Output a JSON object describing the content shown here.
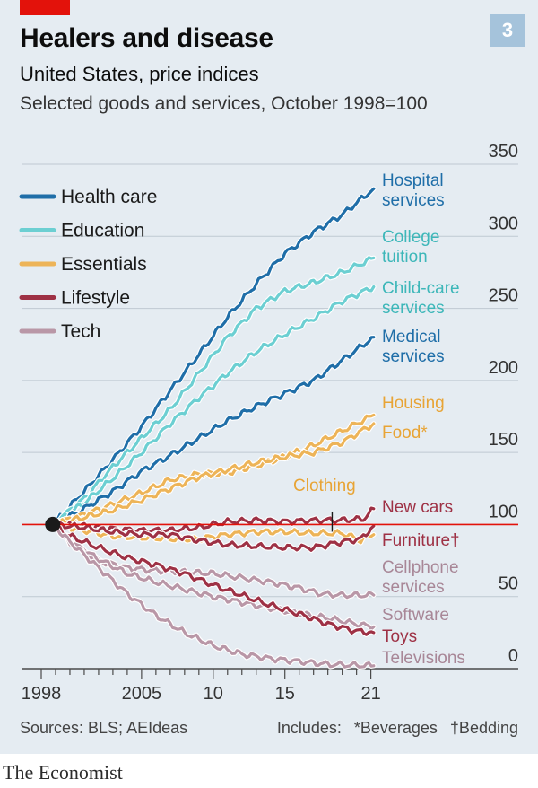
{
  "header": {
    "title": "Healers and disease",
    "subtitle": "United States, price indices",
    "description": "Selected goods and services, October 1998=100",
    "badge": "3"
  },
  "footer": {
    "source": "Sources: BLS; AEIdeas",
    "notes_prefix": "Includes:",
    "note_food": "*Beverages",
    "note_furniture": "†Bedding",
    "brand": "The Economist"
  },
  "colors": {
    "background": "#e5ecf2",
    "brand_red": "#e3120b",
    "badge": "#a5c3db",
    "health_care": "#1f6ea8",
    "education": "#6ccfd2",
    "essentials": "#edb458",
    "lifestyle": "#9e3145",
    "tech": "#b997a7",
    "baseline": "#e3120b",
    "grid": "#bfc9d2"
  },
  "chart_data": {
    "type": "line",
    "title": "Healers and disease",
    "subtitle": "United States, price indices",
    "base": "October 1998=100",
    "xlabel": "",
    "ylabel": "",
    "xlim": [
      1998,
      2021.4
    ],
    "ylim": [
      0,
      350
    ],
    "yticks": [
      0,
      50,
      100,
      150,
      200,
      250,
      300,
      350
    ],
    "y_axis_position": "right",
    "xticks": [
      {
        "value": 1998,
        "label": "1998"
      },
      {
        "value": 2005,
        "label": "2005"
      },
      {
        "value": 2010,
        "label": "10"
      },
      {
        "value": 2015,
        "label": "15"
      },
      {
        "value": 2021,
        "label": "21"
      }
    ],
    "grid": true,
    "legend_position": "top-left",
    "legend": [
      {
        "name": "Health care",
        "color": "#1f6ea8"
      },
      {
        "name": "Education",
        "color": "#6ccfd2"
      },
      {
        "name": "Essentials",
        "color": "#edb458"
      },
      {
        "name": "Lifestyle",
        "color": "#9e3145"
      },
      {
        "name": "Tech",
        "color": "#b997a7"
      }
    ],
    "series": [
      {
        "name": "Hospital services",
        "group": "Health care",
        "color": "#1f6ea8",
        "points": [
          [
            1998.8,
            100
          ],
          [
            2001,
            123
          ],
          [
            2003,
            145
          ],
          [
            2005,
            168
          ],
          [
            2007,
            193
          ],
          [
            2009,
            218
          ],
          [
            2011,
            244
          ],
          [
            2013,
            267
          ],
          [
            2015,
            288
          ],
          [
            2017,
            303
          ],
          [
            2019,
            315
          ],
          [
            2021.2,
            333
          ]
        ]
      },
      {
        "name": "College tuition",
        "group": "Education",
        "color": "#6ccfd2",
        "points": [
          [
            1998.8,
            100
          ],
          [
            2001,
            118
          ],
          [
            2003,
            140
          ],
          [
            2005,
            160
          ],
          [
            2007,
            180
          ],
          [
            2009,
            205
          ],
          [
            2011,
            230
          ],
          [
            2013,
            250
          ],
          [
            2015,
            262
          ],
          [
            2017,
            268
          ],
          [
            2019,
            275
          ],
          [
            2021.2,
            285
          ]
        ]
      },
      {
        "name": "Child-care services",
        "group": "Education",
        "color": "#6ccfd2",
        "points": [
          [
            1998.8,
            100
          ],
          [
            2001,
            115
          ],
          [
            2003,
            132
          ],
          [
            2005,
            150
          ],
          [
            2007,
            170
          ],
          [
            2009,
            188
          ],
          [
            2011,
            205
          ],
          [
            2013,
            220
          ],
          [
            2015,
            232
          ],
          [
            2017,
            243
          ],
          [
            2019,
            255
          ],
          [
            2021.2,
            265
          ]
        ]
      },
      {
        "name": "Medical services",
        "group": "Health care",
        "color": "#1f6ea8",
        "points": [
          [
            1998.8,
            100
          ],
          [
            2001,
            111
          ],
          [
            2003,
            123
          ],
          [
            2005,
            137
          ],
          [
            2007,
            148
          ],
          [
            2009,
            160
          ],
          [
            2011,
            172
          ],
          [
            2013,
            182
          ],
          [
            2015,
            191
          ],
          [
            2017,
            200
          ],
          [
            2019,
            214
          ],
          [
            2021.2,
            230
          ]
        ]
      },
      {
        "name": "Housing",
        "group": "Essentials",
        "color": "#edb458",
        "points": [
          [
            1998.8,
            100
          ],
          [
            2001,
            107
          ],
          [
            2003,
            114
          ],
          [
            2005,
            122
          ],
          [
            2007,
            131
          ],
          [
            2009,
            135
          ],
          [
            2011,
            136
          ],
          [
            2013,
            141
          ],
          [
            2015,
            147
          ],
          [
            2017,
            155
          ],
          [
            2019,
            165
          ],
          [
            2021.2,
            176
          ]
        ]
      },
      {
        "name": "Food*",
        "group": "Essentials",
        "color": "#edb458",
        "points": [
          [
            1998.8,
            100
          ],
          [
            2001,
            105
          ],
          [
            2003,
            110
          ],
          [
            2005,
            117
          ],
          [
            2007,
            125
          ],
          [
            2009,
            133
          ],
          [
            2011,
            138
          ],
          [
            2013,
            143
          ],
          [
            2015,
            147
          ],
          [
            2017,
            150
          ],
          [
            2019,
            157
          ],
          [
            2021.2,
            170
          ]
        ]
      },
      {
        "name": "New cars",
        "group": "Lifestyle",
        "color": "#9e3145",
        "points": [
          [
            1998.8,
            100
          ],
          [
            2001,
            99
          ],
          [
            2003,
            97
          ],
          [
            2005,
            96
          ],
          [
            2007,
            96
          ],
          [
            2009,
            98
          ],
          [
            2011,
            102
          ],
          [
            2013,
            103
          ],
          [
            2015,
            102
          ],
          [
            2017,
            103
          ],
          [
            2019,
            103
          ],
          [
            2020.5,
            104
          ],
          [
            2021.2,
            111
          ]
        ]
      },
      {
        "name": "Clothing",
        "group": "Essentials",
        "color": "#edb458",
        "points": [
          [
            1998.8,
            100
          ],
          [
            2001,
            96
          ],
          [
            2003,
            92
          ],
          [
            2005,
            91
          ],
          [
            2007,
            90
          ],
          [
            2009,
            90
          ],
          [
            2011,
            93
          ],
          [
            2013,
            95
          ],
          [
            2015,
            95
          ],
          [
            2017,
            94
          ],
          [
            2019,
            94
          ],
          [
            2020.3,
            89
          ],
          [
            2021.2,
            93
          ]
        ]
      },
      {
        "name": "Furniture†",
        "group": "Lifestyle",
        "color": "#9e3145",
        "points": [
          [
            1998.8,
            100
          ],
          [
            2001,
            98
          ],
          [
            2003,
            95
          ],
          [
            2005,
            93
          ],
          [
            2007,
            93
          ],
          [
            2009,
            89
          ],
          [
            2011,
            86
          ],
          [
            2013,
            85
          ],
          [
            2015,
            84
          ],
          [
            2017,
            84
          ],
          [
            2019,
            88
          ],
          [
            2020.3,
            90
          ],
          [
            2021.2,
            99
          ]
        ]
      },
      {
        "name": "Cellphone services",
        "group": "Tech",
        "color": "#b997a7",
        "points": [
          [
            1998.8,
            100
          ],
          [
            2000,
            88
          ],
          [
            2002,
            75
          ],
          [
            2004,
            70
          ],
          [
            2006,
            68
          ],
          [
            2008,
            67
          ],
          [
            2010,
            66
          ],
          [
            2012,
            63
          ],
          [
            2014,
            60
          ],
          [
            2016,
            56
          ],
          [
            2017.5,
            52
          ],
          [
            2019,
            51
          ],
          [
            2021.2,
            51
          ]
        ]
      },
      {
        "name": "Software",
        "group": "Tech",
        "color": "#b997a7",
        "points": [
          [
            1998.8,
            100
          ],
          [
            2000,
            88
          ],
          [
            2002,
            76
          ],
          [
            2004,
            66
          ],
          [
            2006,
            60
          ],
          [
            2008,
            55
          ],
          [
            2010,
            50
          ],
          [
            2012,
            46
          ],
          [
            2014,
            42
          ],
          [
            2016,
            38
          ],
          [
            2018,
            35
          ],
          [
            2020,
            31
          ],
          [
            2021.2,
            29
          ]
        ]
      },
      {
        "name": "Toys",
        "group": "Lifestyle",
        "color": "#9e3145",
        "points": [
          [
            1998.8,
            100
          ],
          [
            2000,
            92
          ],
          [
            2002,
            84
          ],
          [
            2004,
            77
          ],
          [
            2006,
            72
          ],
          [
            2008,
            66
          ],
          [
            2010,
            58
          ],
          [
            2012,
            51
          ],
          [
            2014,
            44
          ],
          [
            2016,
            38
          ],
          [
            2018,
            31
          ],
          [
            2020,
            26
          ],
          [
            2021.2,
            25
          ]
        ]
      },
      {
        "name": "Televisions",
        "group": "Tech",
        "color": "#b997a7",
        "points": [
          [
            1998.8,
            100
          ],
          [
            2000,
            88
          ],
          [
            2002,
            70
          ],
          [
            2004,
            52
          ],
          [
            2006,
            37
          ],
          [
            2008,
            25
          ],
          [
            2010,
            16
          ],
          [
            2012,
            10
          ],
          [
            2014,
            7
          ],
          [
            2016,
            5
          ],
          [
            2018,
            3
          ],
          [
            2021.2,
            2
          ]
        ]
      }
    ],
    "series_labels": [
      {
        "name": "Hospital services",
        "lines": [
          "Hospital",
          "services"
        ],
        "color": "#1f6ea8"
      },
      {
        "name": "College tuition",
        "lines": [
          "College",
          "tuition"
        ],
        "color": "#3db7b9"
      },
      {
        "name": "Child-care services",
        "lines": [
          "Child-care",
          "services"
        ],
        "color": "#3db7b9"
      },
      {
        "name": "Medical services",
        "lines": [
          "Medical",
          "services"
        ],
        "color": "#1f6ea8"
      },
      {
        "name": "Housing",
        "lines": [
          "Housing"
        ],
        "color": "#e8a435"
      },
      {
        "name": "Food*",
        "lines": [
          "Food*"
        ],
        "color": "#e8a435"
      },
      {
        "name": "Clothing",
        "lines": [
          "Clothing"
        ],
        "color": "#e8a435"
      },
      {
        "name": "New cars",
        "lines": [
          "New cars"
        ],
        "color": "#9e3145"
      },
      {
        "name": "Furniture†",
        "lines": [
          "Furniture†"
        ],
        "color": "#9e3145"
      },
      {
        "name": "Cellphone services",
        "lines": [
          "Cellphone",
          "services"
        ],
        "color": "#a88797"
      },
      {
        "name": "Software",
        "lines": [
          "Software"
        ],
        "color": "#a88797"
      },
      {
        "name": "Toys",
        "lines": [
          "Toys"
        ],
        "color": "#9e3145"
      },
      {
        "name": "Televisions",
        "lines": [
          "Televisions"
        ],
        "color": "#a88797"
      }
    ]
  }
}
